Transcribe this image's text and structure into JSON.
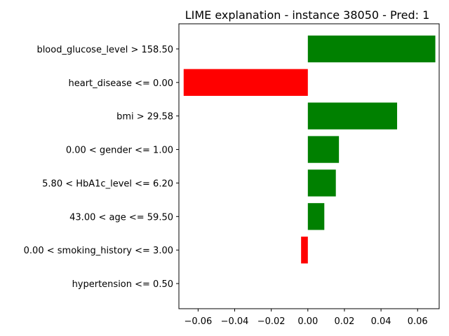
{
  "chart_data": {
    "type": "bar",
    "orientation": "horizontal",
    "title": "LIME explanation - instance 38050 - Pred: 1",
    "xlabel": "",
    "ylabel": "",
    "xlim": [
      -0.0705,
      0.0718
    ],
    "xticks": [
      -0.06,
      -0.04,
      -0.02,
      0.0,
      0.02,
      0.04,
      0.06
    ],
    "xtick_labels": [
      "−0.06",
      "−0.04",
      "−0.02",
      "0.00",
      "0.02",
      "0.04",
      "0.06"
    ],
    "categories": [
      "blood_glucose_level > 158.50",
      "heart_disease <= 0.00",
      "bmi > 29.58",
      "0.00 < gender <= 1.00",
      "5.80 < HbA1c_level <= 6.20",
      "43.00 < age <= 59.50",
      "0.00 < smoking_history <= 3.00",
      "hypertension <= 0.50"
    ],
    "values": [
      0.0697,
      -0.0679,
      0.0488,
      0.017,
      0.0153,
      0.009,
      -0.0037,
      0.0
    ],
    "positive_color": "#008000",
    "negative_color": "#ff0000",
    "grid": false
  }
}
